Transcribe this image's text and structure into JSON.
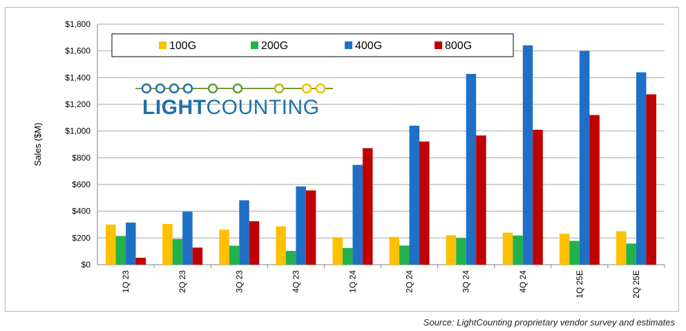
{
  "chart_data": {
    "type": "bar",
    "ylabel": "Sales ($M)",
    "ylim": [
      0,
      1800
    ],
    "y_ticks": [
      "$0",
      "$200",
      "$400",
      "$600",
      "$800",
      "$1,000",
      "$1,200",
      "$1,400",
      "$1,600",
      "$1,800"
    ],
    "grid": true,
    "legend_placement": "top-left",
    "categories": [
      "1Q 23",
      "2Q 23",
      "3Q 23",
      "4Q 23",
      "1Q 24",
      "2Q 24",
      "3Q 24",
      "4Q 24",
      "1Q 25E",
      "2Q 25E"
    ],
    "series": [
      {
        "name": "100G",
        "color": "#ffc000",
        "values": [
          300,
          305,
          262,
          287,
          205,
          208,
          220,
          240,
          232,
          250
        ]
      },
      {
        "name": "200G",
        "color": "#22b24c",
        "values": [
          215,
          193,
          142,
          103,
          125,
          143,
          198,
          218,
          178,
          158
        ]
      },
      {
        "name": "400G",
        "color": "#1f6fc6",
        "values": [
          315,
          397,
          482,
          586,
          747,
          1040,
          1428,
          1642,
          1600,
          1440
        ]
      },
      {
        "name": "800G",
        "color": "#c00000",
        "values": [
          52,
          128,
          325,
          556,
          872,
          922,
          967,
          1010,
          1120,
          1275
        ]
      }
    ]
  },
  "logo": {
    "text_bold": "LIGHT",
    "text_regular": "COUNTING"
  },
  "source": "Source: LightCounting proprietary vendor survey and estimates"
}
